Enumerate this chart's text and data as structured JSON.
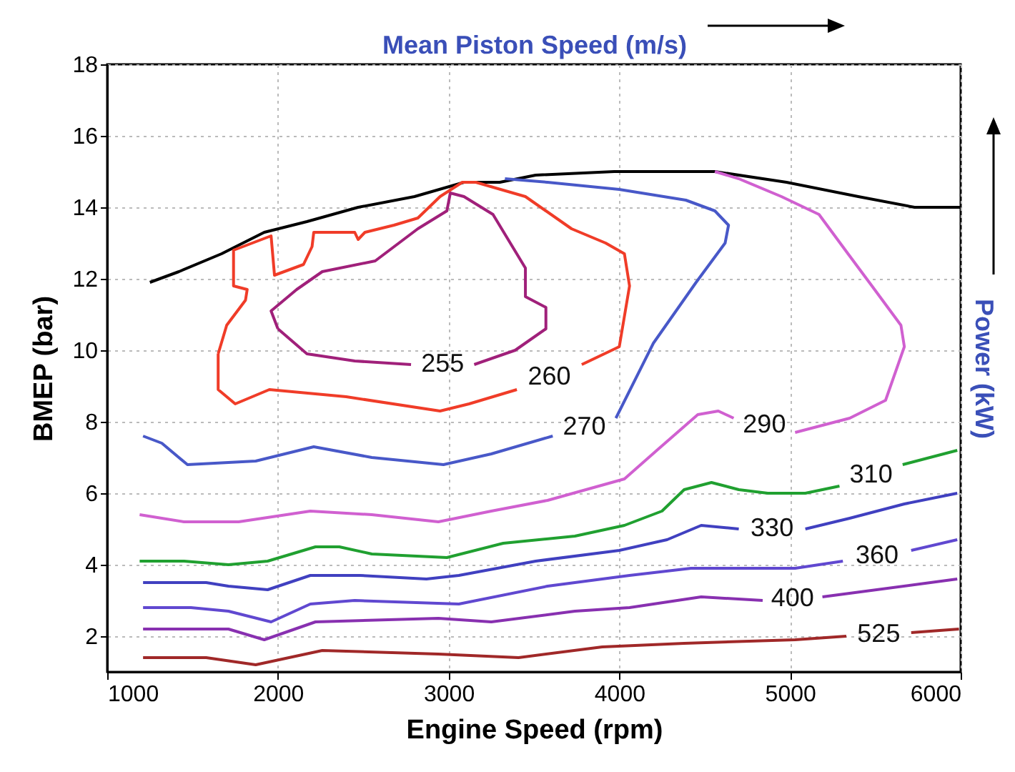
{
  "chart_data": {
    "type": "line",
    "xlabel": "Engine Speed (rpm)",
    "ylabel": "BMEP (bar)",
    "x2label": "Mean Piston Speed (m/s)",
    "y2label": "Power (kW)",
    "xlim": [
      1000,
      6000
    ],
    "xticks": [
      1000,
      2000,
      3000,
      4000,
      5000,
      6000
    ],
    "ylim": [
      1,
      18
    ],
    "yticks": [
      2,
      4,
      6,
      8,
      10,
      12,
      14,
      16,
      18
    ],
    "grid": true,
    "legend": false,
    "marker": "none",
    "line_style": "solid",
    "series": [
      {
        "color": "#000000",
        "x": [
          1250,
          1420,
          1670,
          1920,
          2170,
          2470,
          2800,
          3090,
          3300,
          3510,
          3970,
          4560,
          4980,
          5400,
          5730,
          6000
        ],
        "values": [
          11.9,
          12.2,
          12.7,
          13.3,
          13.6,
          14.0,
          14.3,
          14.7,
          14.7,
          14.9,
          15.0,
          15.0,
          14.7,
          14.3,
          14.0,
          14.0
        ]
      },
      {
        "name": "255",
        "color": "#a0207a",
        "x": [
          2000,
          2170,
          2450,
          2780,
          null,
          3150,
          3390,
          3570,
          3570,
          3450,
          3450,
          3260,
          3090,
          3010,
          2990,
          2820,
          2570,
          2260,
          2110,
          1960,
          2000
        ],
        "values": [
          10.6,
          9.9,
          9.7,
          9.6,
          null,
          9.6,
          10.0,
          10.6,
          11.2,
          11.5,
          12.3,
          13.8,
          14.3,
          14.4,
          13.9,
          13.4,
          12.5,
          12.2,
          11.7,
          11.1,
          10.6
        ]
      },
      {
        "name": "260",
        "color": "#f03c28",
        "x": [
          1650,
          1650,
          1750,
          1950,
          2400,
          2950,
          3120,
          3400,
          null,
          3780,
          4000,
          4060,
          4030,
          3920,
          3720,
          3450,
          3160,
          3080,
          2950,
          2820,
          2680,
          2510,
          2470,
          2450,
          2210,
          2200,
          2150,
          1980,
          1960,
          1740,
          1740,
          1820,
          1810,
          1700,
          1650
        ],
        "values": [
          9.9,
          8.9,
          8.5,
          8.9,
          8.7,
          8.3,
          8.5,
          8.9,
          null,
          9.6,
          10.1,
          11.8,
          12.7,
          13.0,
          13.4,
          14.3,
          14.7,
          14.7,
          14.3,
          13.7,
          13.5,
          13.3,
          13.1,
          13.3,
          13.3,
          12.9,
          12.4,
          12.1,
          13.2,
          12.8,
          11.8,
          11.7,
          11.4,
          10.7,
          9.9
        ]
      },
      {
        "name": "270",
        "color": "#4858c8",
        "x": [
          1210,
          1320,
          1470,
          1870,
          2210,
          2550,
          2970,
          3250,
          3610,
          null,
          3980,
          4200,
          4450,
          4620,
          4640,
          4560,
          4390,
          4000,
          3580,
          3330
        ],
        "values": [
          7.6,
          7.4,
          6.8,
          6.9,
          7.3,
          7.0,
          6.8,
          7.1,
          7.6,
          null,
          8.1,
          10.2,
          11.9,
          13.0,
          13.5,
          13.9,
          14.2,
          14.5,
          14.7,
          14.8
        ]
      },
      {
        "name": "290",
        "color": "#d060d0",
        "x": [
          1190,
          1450,
          1770,
          2190,
          2550,
          2940,
          3250,
          3580,
          4030,
          4220,
          4460,
          4580,
          4670,
          null,
          5030,
          5350,
          5560,
          5670,
          5650,
          5480,
          5340,
          5170,
          4950,
          4700,
          4560
        ],
        "values": [
          5.4,
          5.2,
          5.2,
          5.5,
          5.4,
          5.2,
          5.5,
          5.8,
          6.4,
          7.2,
          8.2,
          8.3,
          8.1,
          null,
          7.7,
          8.1,
          8.6,
          10.1,
          10.7,
          11.8,
          12.7,
          13.8,
          14.3,
          14.8,
          15.0
        ]
      },
      {
        "name": "310",
        "color": "#20a030",
        "x": [
          1190,
          1450,
          1710,
          1940,
          2220,
          2360,
          2550,
          2990,
          3320,
          3740,
          4030,
          4250,
          4380,
          4540,
          4700,
          4870,
          5090,
          5290,
          null,
          5660,
          5980
        ],
        "values": [
          4.1,
          4.1,
          4.0,
          4.1,
          4.5,
          4.5,
          4.3,
          4.2,
          4.6,
          4.8,
          5.1,
          5.5,
          6.1,
          6.3,
          6.1,
          6.0,
          6.0,
          6.2,
          null,
          6.8,
          7.2
        ]
      },
      {
        "name": "330",
        "color": "#4040c0",
        "x": [
          1210,
          1580,
          1710,
          1940,
          2190,
          2480,
          2870,
          3060,
          3510,
          4000,
          4280,
          4480,
          4700,
          null,
          5090,
          5350,
          5670,
          5980
        ],
        "values": [
          3.5,
          3.5,
          3.4,
          3.3,
          3.7,
          3.7,
          3.6,
          3.7,
          4.1,
          4.4,
          4.7,
          5.1,
          5.0,
          null,
          5.0,
          5.3,
          5.7,
          6.0
        ]
      },
      {
        "name": "360",
        "color": "#6048d0",
        "x": [
          1210,
          1490,
          1710,
          1960,
          2190,
          2450,
          3060,
          3580,
          4060,
          4420,
          5030,
          5310,
          null,
          5710,
          5980
        ],
        "values": [
          2.8,
          2.8,
          2.7,
          2.4,
          2.9,
          3.0,
          2.9,
          3.4,
          3.7,
          3.9,
          3.9,
          4.1,
          null,
          4.4,
          4.7
        ]
      },
      {
        "name": "400",
        "color": "#8830b0",
        "x": [
          1210,
          1710,
          1920,
          2220,
          2940,
          3250,
          3740,
          4060,
          4480,
          4840,
          null,
          5190,
          5980
        ],
        "values": [
          2.2,
          2.2,
          1.9,
          2.4,
          2.5,
          2.4,
          2.7,
          2.8,
          3.1,
          3.0,
          null,
          3.1,
          3.6
        ]
      },
      {
        "name": "525",
        "color": "#a02828",
        "x": [
          1210,
          1580,
          1870,
          2260,
          2940,
          3410,
          3900,
          4380,
          5030,
          5330,
          null,
          5710,
          5990
        ],
        "values": [
          1.4,
          1.4,
          1.2,
          1.6,
          1.5,
          1.4,
          1.7,
          1.8,
          1.9,
          2.0,
          null,
          2.1,
          2.2
        ]
      }
    ]
  }
}
